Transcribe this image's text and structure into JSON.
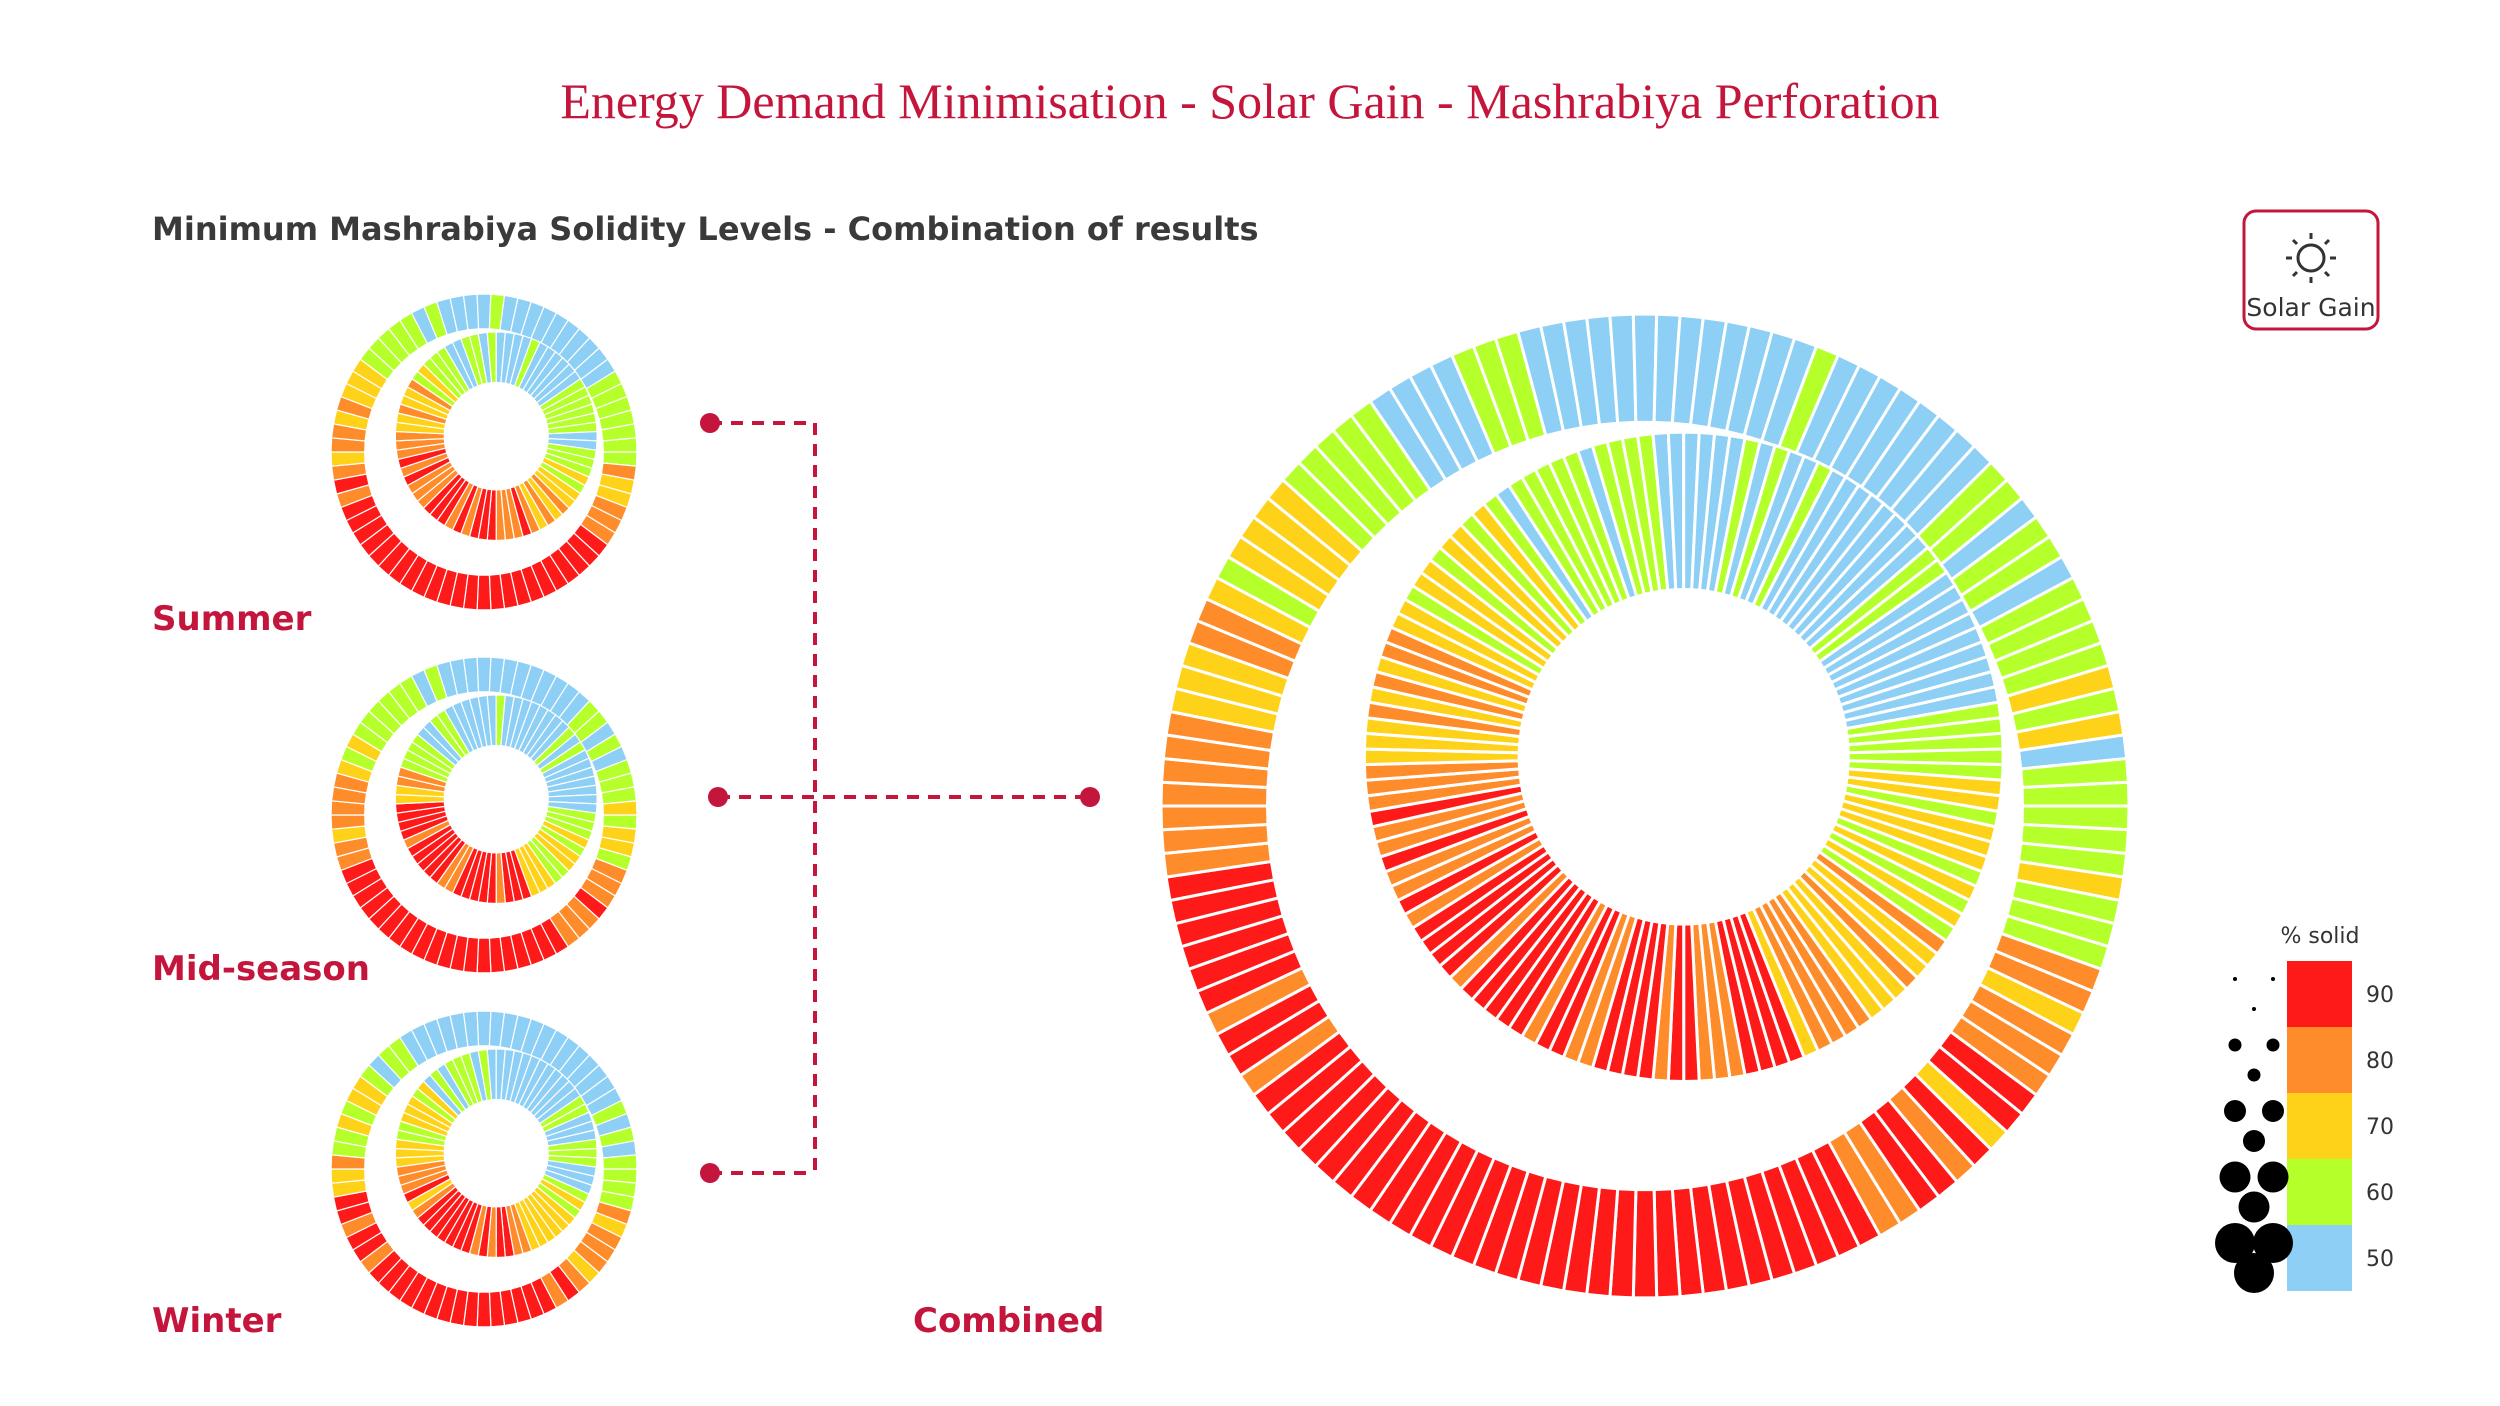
{
  "header": {
    "title": "Energy Demand Minimisation - Solar Gain - Mashrabiya Perforation",
    "subtitle": "Minimum Mashrabiya Solidity Levels - Combination of results"
  },
  "badge": {
    "label": "Solar Gain"
  },
  "panels": [
    {
      "label": "Summer"
    },
    {
      "label": "Mid-season"
    },
    {
      "label": "Winter"
    },
    {
      "label": "Combined"
    }
  ],
  "legend": {
    "title": "% solid",
    "items": [
      {
        "label": "90",
        "color": "#ff1a1a"
      },
      {
        "label": "80",
        "color": "#ff8c2a"
      },
      {
        "label": "70",
        "color": "#ffd21a"
      },
      {
        "label": "60",
        "color": "#b5ff2a"
      },
      {
        "label": "50",
        "color": "#8dcff5"
      }
    ]
  }
}
